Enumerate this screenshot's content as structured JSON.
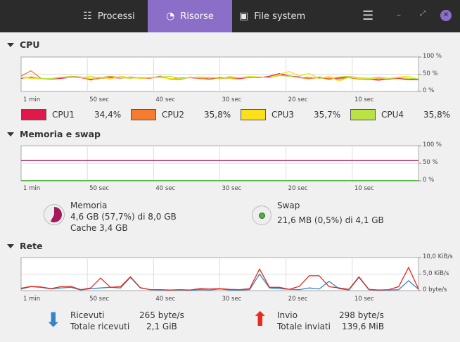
{
  "header": {
    "tabs": [
      {
        "label": "Processi",
        "icon": "list-icon"
      },
      {
        "label": "Risorse",
        "icon": "gauge-icon",
        "active": true
      },
      {
        "label": "File system",
        "icon": "disk-icon"
      }
    ],
    "accent": "#8b6ec7"
  },
  "cpu": {
    "title": "CPU",
    "y_ticks": [
      "100 %",
      "50 %",
      "0 %"
    ],
    "x_ticks": [
      "1 min",
      "50 sec",
      "40 sec",
      "30 sec",
      "20 sec",
      "10 sec"
    ],
    "legend": [
      {
        "name": "CPU1",
        "value": "34,4%",
        "color": "#e0194b"
      },
      {
        "name": "CPU2",
        "value": "35,8%",
        "color": "#f57b2e"
      },
      {
        "name": "CPU3",
        "value": "35,7%",
        "color": "#fce11a"
      },
      {
        "name": "CPU4",
        "value": "35,8%",
        "color": "#b8e343"
      }
    ]
  },
  "memory": {
    "title": "Memoria e swap",
    "y_ticks": [
      "100 %",
      "50 %",
      "0 %"
    ],
    "x_ticks": [
      "1 min",
      "50 sec",
      "40 sec",
      "30 sec",
      "20 sec",
      "10 sec"
    ],
    "mem_label": "Memoria",
    "mem_usage": "4,6 GB (57,7%) di 8,0 GB",
    "mem_cache": "Cache 3,4 GB",
    "mem_percent": 57.7,
    "mem_color": "#a3195b",
    "swap_label": "Swap",
    "swap_usage": "21,6 MB (0,5%) di 4,1 GB",
    "swap_percent": 0.5,
    "swap_color": "#4caf3c"
  },
  "network": {
    "title": "Rete",
    "y_ticks": [
      "10,0 KiB/s",
      "5,0 KiB/s",
      "0 byte/s"
    ],
    "x_ticks": [
      "1 min",
      "50 sec",
      "40 sec",
      "30 sec",
      "20 sec",
      "10 sec"
    ],
    "recv_label": "Ricevuti",
    "recv_rate": "265 byte/s",
    "recv_total_label": "Totale ricevuti",
    "recv_total": "2,1 GiB",
    "send_label": "Invio",
    "send_rate": "298 byte/s",
    "send_total_label": "Totale inviati",
    "send_total": "139,6 MiB",
    "recv_color": "#3584c8",
    "send_color": "#e8291c"
  },
  "chart_data": [
    {
      "type": "line",
      "title": "CPU",
      "ylim": [
        0,
        100
      ],
      "series": [
        {
          "name": "CPU1",
          "values": [
            38,
            42,
            37,
            36,
            38,
            41,
            40,
            35,
            38,
            40,
            39,
            41,
            38,
            40,
            43,
            37,
            39,
            40,
            38,
            36,
            40,
            38,
            37,
            41,
            40,
            44,
            52,
            45,
            42,
            38,
            40,
            36,
            39,
            42,
            37,
            35,
            33,
            36,
            38,
            34,
            34
          ]
        },
        {
          "name": "CPU2",
          "values": [
            45,
            60,
            38,
            37,
            40,
            44,
            42,
            33,
            40,
            44,
            40,
            42,
            39,
            38,
            45,
            36,
            34,
            42,
            37,
            40,
            37,
            41,
            39,
            40,
            42,
            41,
            48,
            44,
            40,
            37,
            42,
            38,
            36,
            40,
            36,
            34,
            37,
            35,
            40,
            38,
            36
          ]
        },
        {
          "name": "CPU3",
          "values": [
            40,
            38,
            36,
            38,
            42,
            40,
            41,
            38,
            42,
            36,
            44,
            40,
            38,
            41,
            40,
            38,
            36,
            42,
            40,
            39,
            42,
            38,
            40,
            44,
            42,
            40,
            50,
            58,
            45,
            52,
            38,
            44,
            30,
            42,
            38,
            36,
            40,
            38,
            42,
            44,
            36
          ]
        },
        {
          "name": "CPU4",
          "values": [
            42,
            40,
            38,
            37,
            41,
            43,
            40,
            44,
            38,
            42,
            40,
            38,
            41,
            40,
            42,
            44,
            38,
            40,
            42,
            41,
            38,
            43,
            40,
            42,
            41,
            40,
            46,
            44,
            40,
            42,
            38,
            40,
            42,
            44,
            40,
            38,
            42,
            38,
            40,
            38,
            36
          ]
        }
      ]
    },
    {
      "type": "line",
      "title": "Memoria e swap",
      "ylim": [
        0,
        100
      ],
      "series": [
        {
          "name": "Memoria",
          "values": [
            57.7,
            57.7
          ]
        },
        {
          "name": "Swap",
          "values": [
            0.5,
            0.5
          ]
        }
      ]
    },
    {
      "type": "line",
      "title": "Rete",
      "ylim": [
        0,
        10
      ],
      "series": [
        {
          "name": "Ricevuti",
          "values": [
            0.5,
            1.2,
            1.0,
            0.5,
            0.8,
            1.0,
            0.2,
            0.6,
            0.8,
            1.0,
            0.8,
            4.0,
            0.8,
            0.3,
            0.2,
            0.2,
            0.2,
            0.1,
            0.3,
            0.2,
            0.5,
            0.2,
            0.2,
            0.3,
            5.0,
            0.8,
            0.6,
            0.4,
            0.3,
            0.8,
            0.5,
            2.8,
            0.6,
            0.2,
            4.0,
            0.3,
            0.1,
            0.2,
            0.3,
            3.0,
            0.4
          ]
        },
        {
          "name": "Invio",
          "values": [
            0.7,
            1.3,
            1.1,
            0.6,
            1.2,
            1.3,
            0.3,
            0.8,
            3.8,
            1.0,
            1.2,
            4.2,
            0.9,
            0.3,
            0.3,
            0.2,
            0.3,
            0.2,
            0.6,
            0.5,
            0.6,
            0.4,
            0.3,
            0.6,
            6.5,
            1.0,
            1.0,
            0.4,
            1.3,
            4.5,
            4.5,
            1.2,
            0.8,
            0.4,
            4.2,
            0.4,
            0.2,
            0.3,
            1.2,
            7.0,
            0.5
          ]
        }
      ]
    }
  ]
}
